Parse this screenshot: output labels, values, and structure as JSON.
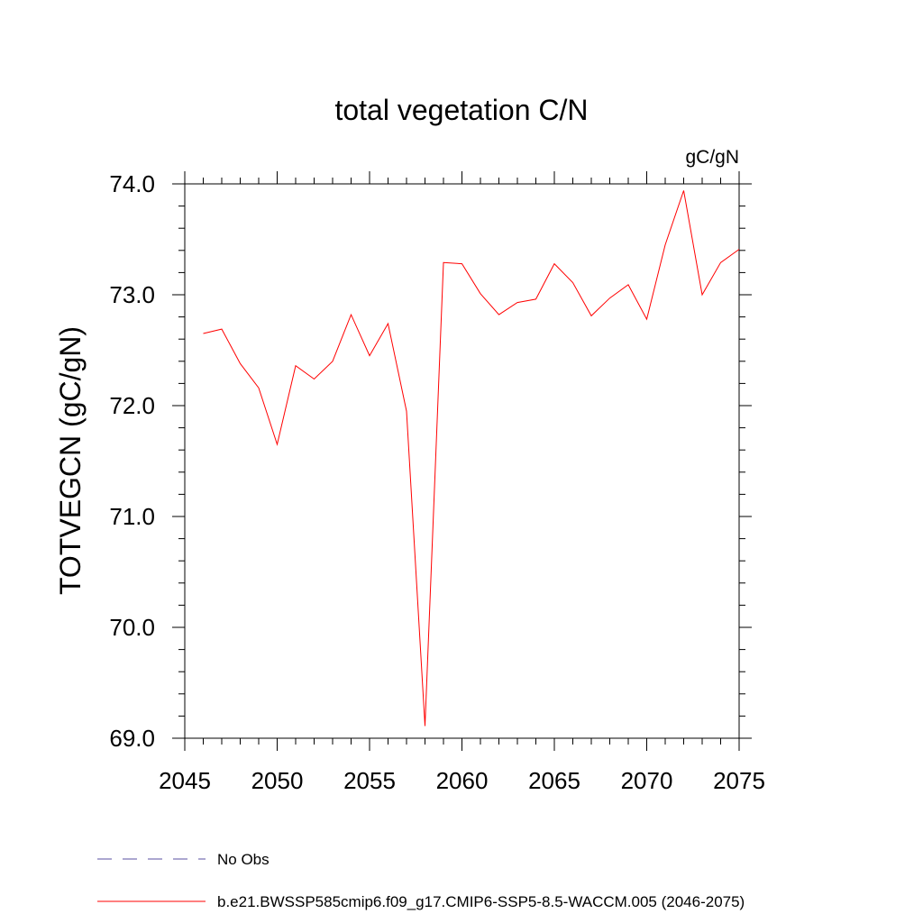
{
  "chart_data": {
    "type": "line",
    "title": "total vegetation C/N",
    "units_label": "gC/gN",
    "ylabel": "TOTVEGCN  (gC/gN)",
    "xlabel": "",
    "xlim": [
      2045,
      2075
    ],
    "ylim": [
      69.0,
      74.0
    ],
    "x_ticks": [
      2045,
      2050,
      2055,
      2060,
      2065,
      2070,
      2075
    ],
    "y_ticks": [
      69.0,
      70.0,
      71.0,
      72.0,
      73.0,
      74.0
    ],
    "x_tick_labels": [
      "2045",
      "2050",
      "2055",
      "2060",
      "2065",
      "2070",
      "2075"
    ],
    "y_tick_labels": [
      "69.0",
      "70.0",
      "71.0",
      "72.0",
      "73.0",
      "74.0"
    ],
    "series": [
      {
        "name": "b.e21.BWSSP585cmip6.f09_g17.CMIP6-SSP5-8.5-WACCM.005 (2046-2075)",
        "color": "#ff0000",
        "style": "solid",
        "x": [
          2046,
          2047,
          2048,
          2049,
          2050,
          2051,
          2052,
          2053,
          2054,
          2055,
          2056,
          2057,
          2058,
          2059,
          2060,
          2061,
          2062,
          2063,
          2064,
          2065,
          2066,
          2067,
          2068,
          2069,
          2070,
          2071,
          2072,
          2073,
          2074,
          2075
        ],
        "values": [
          72.65,
          72.69,
          72.38,
          72.16,
          71.65,
          72.36,
          72.24,
          72.4,
          72.82,
          72.45,
          72.74,
          71.95,
          69.11,
          73.29,
          73.28,
          73.01,
          72.82,
          72.93,
          72.96,
          73.28,
          73.11,
          72.81,
          72.97,
          73.09,
          72.78,
          73.45,
          73.94,
          73.0,
          73.29,
          73.41
        ]
      }
    ],
    "legend": {
      "placement": "bottom",
      "entries": [
        {
          "label": "No Obs",
          "color": "#5a4fa0",
          "style": "dashed"
        },
        {
          "label": "b.e21.BWSSP585cmip6.f09_g17.CMIP6-SSP5-8.5-WACCM.005 (2046-2075)",
          "color": "#ff0000",
          "style": "solid"
        }
      ]
    }
  }
}
